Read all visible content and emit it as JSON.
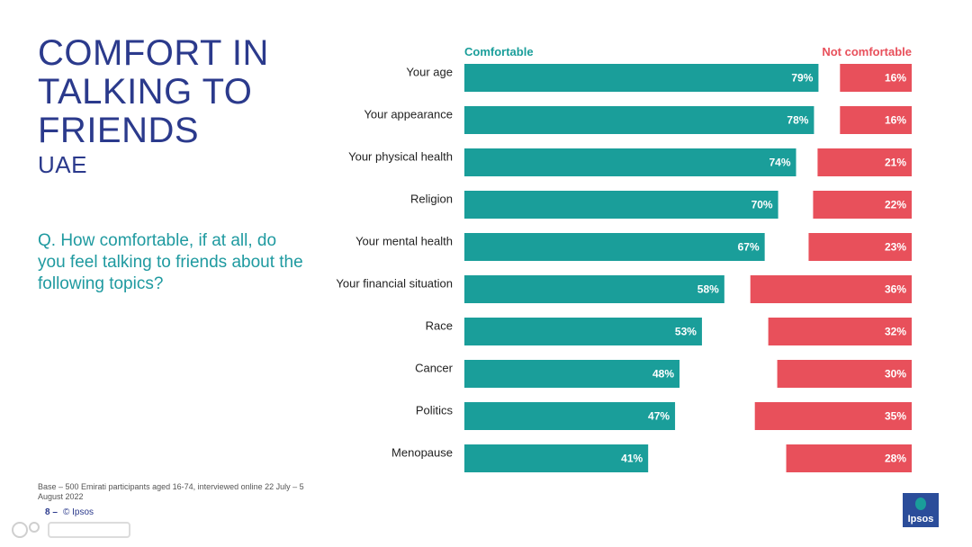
{
  "header": {
    "title_lines": [
      "COMFORT IN",
      "TALKING TO",
      "FRIENDS"
    ],
    "subtitle": "UAE"
  },
  "question": "Q. How comfortable, if at all, do you feel talking to friends about the following topics?",
  "footer": {
    "base_note": "Base – 500 Emirati participants aged 16-74, interviewed online 22 July – 5 August 2022",
    "page_number": "8 –",
    "copyright": "© Ipsos",
    "logo_text": "Ipsos"
  },
  "colors": {
    "comfortable": "#1a9e9a",
    "not_comfortable": "#e8505b",
    "title": "#2b3a8c",
    "question": "#1f9aa0"
  },
  "chart_data": {
    "type": "bar",
    "orientation": "horizontal",
    "categories": [
      "Your age",
      "Your appearance",
      "Your physical health",
      "Religion",
      "Your mental health",
      "Your financial situation",
      "Race",
      "Cancer",
      "Politics",
      "Menopause"
    ],
    "series": [
      {
        "name": "Comfortable",
        "values": [
          79,
          78,
          74,
          70,
          67,
          58,
          53,
          48,
          47,
          41
        ],
        "labels": [
          "79%",
          "78%",
          "74%",
          "70%",
          "67%",
          "58%",
          "53%",
          "48%",
          "47%",
          "41%"
        ]
      },
      {
        "name": "Not comfortable",
        "values": [
          16,
          16,
          21,
          22,
          23,
          36,
          32,
          30,
          35,
          28
        ],
        "labels": [
          "16%",
          "16%",
          "21%",
          "22%",
          "23%",
          "36%",
          "32%",
          "30%",
          "35%",
          "28%"
        ]
      }
    ],
    "xlim": [
      0,
      100
    ],
    "legend": "top",
    "grid": false
  }
}
